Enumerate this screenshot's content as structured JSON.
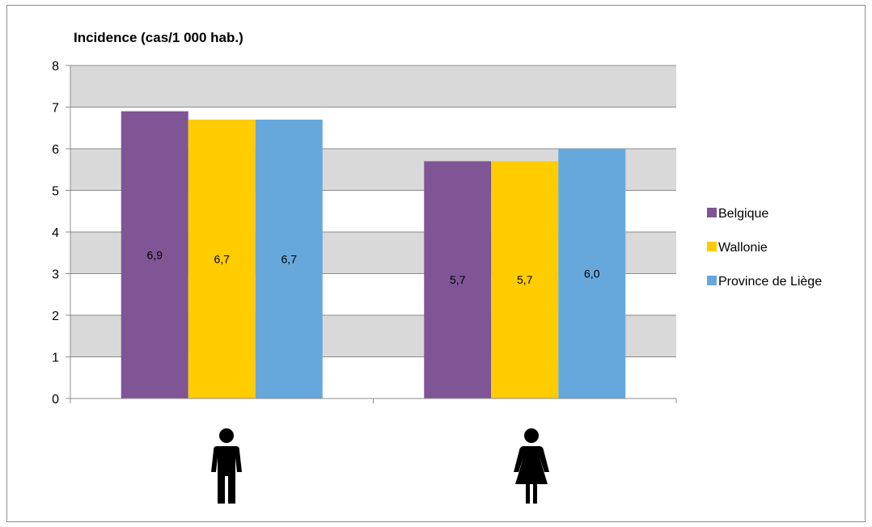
{
  "chart_data": {
    "type": "bar",
    "title": "Incidence (cas/1 000 hab.)",
    "xlabel": "",
    "ylabel": "",
    "categories": [
      "male-icon",
      "female-icon"
    ],
    "series": [
      {
        "name": "Belgique",
        "values": [
          6.9,
          5.7
        ],
        "labels": [
          "6,9",
          "5,7"
        ],
        "color": "#7f5595"
      },
      {
        "name": "Wallonie",
        "values": [
          6.7,
          5.7
        ],
        "labels": [
          "6,7",
          "5,7"
        ],
        "color": "#ffcc00"
      },
      {
        "name": "Province de Liège",
        "values": [
          6.7,
          6.0
        ],
        "labels": [
          "6,7",
          "6,0"
        ],
        "color": "#66a8dc"
      }
    ],
    "ylim": [
      0,
      8
    ],
    "yticks": [
      0,
      1,
      2,
      3,
      4,
      5,
      6,
      7,
      8
    ],
    "ytick_labels": [
      "0",
      "1",
      "2",
      "3",
      "4",
      "5",
      "6",
      "7",
      "8"
    ],
    "grid": "horizontal",
    "band_colors": [
      "#ffffff",
      "#d9d9d9"
    ],
    "legend_position": "right"
  }
}
